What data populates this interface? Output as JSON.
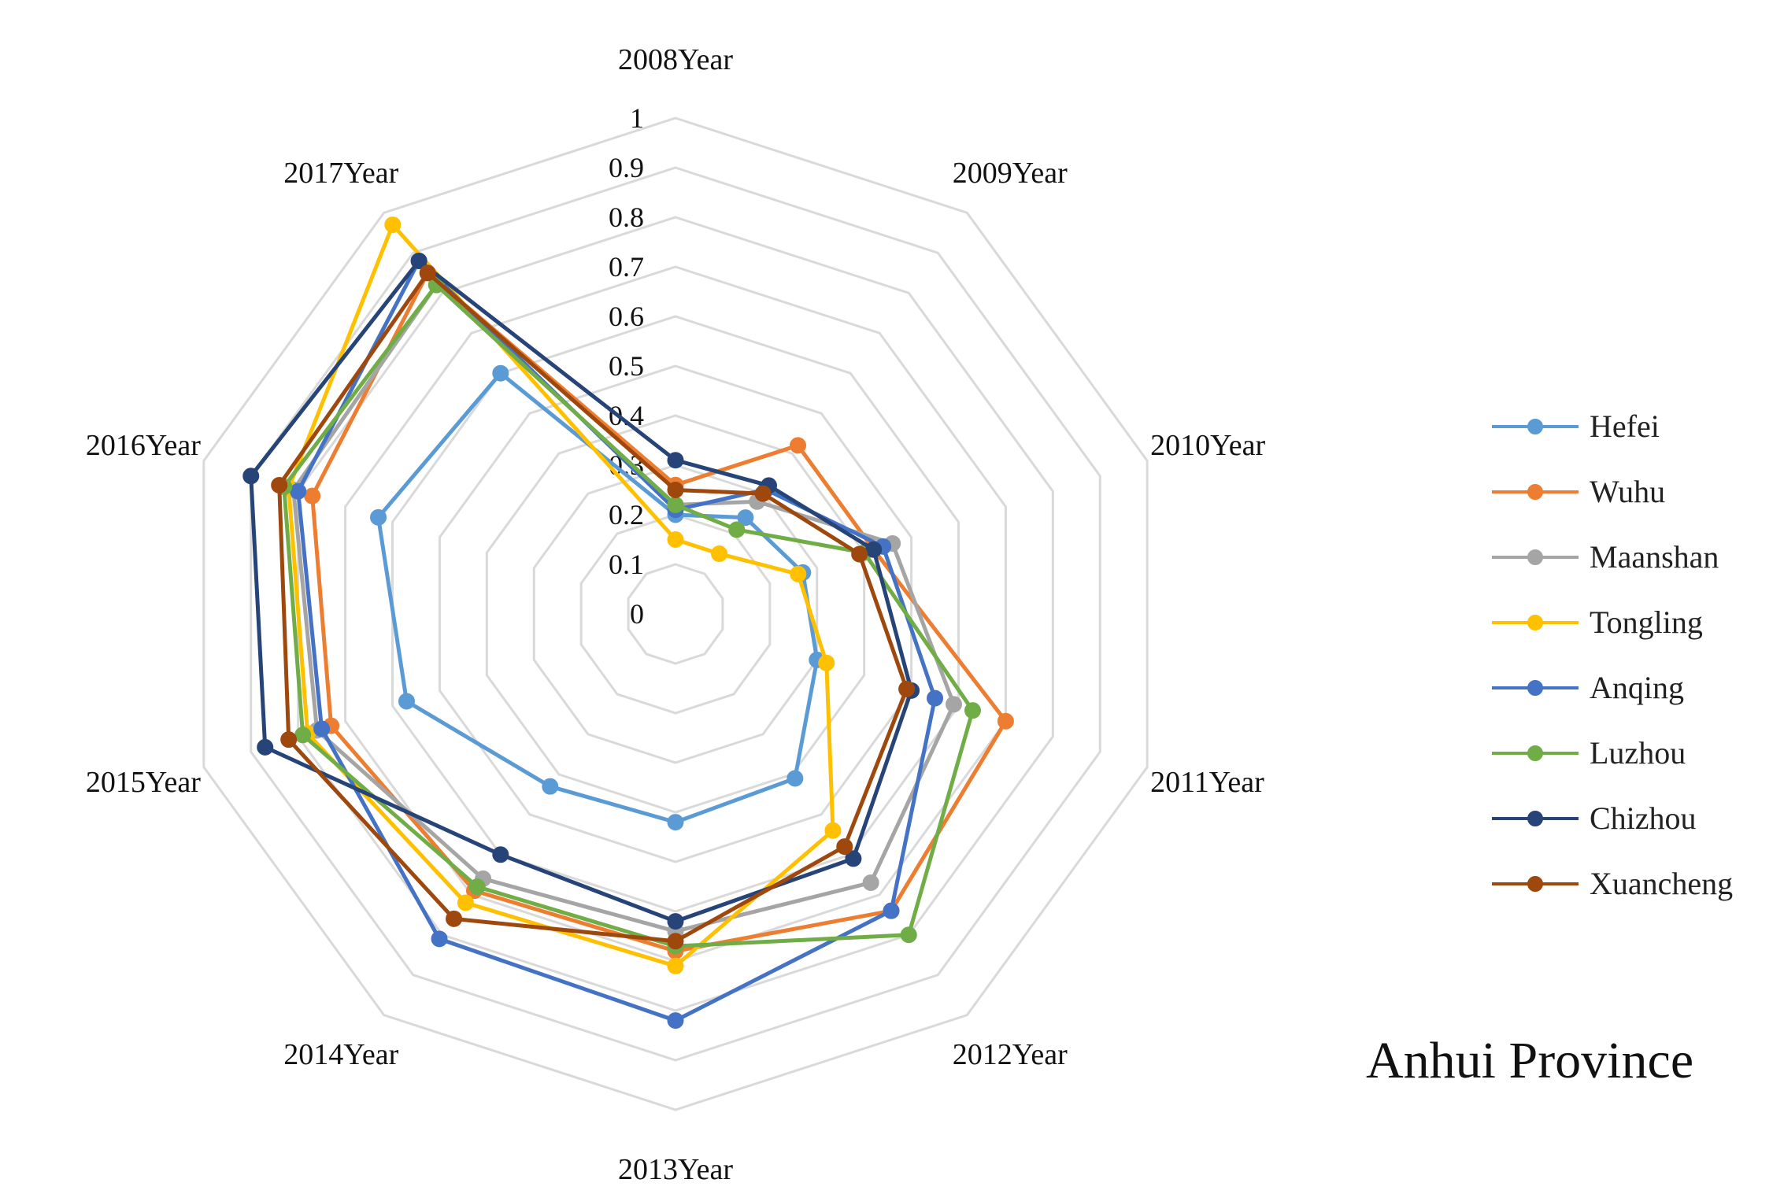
{
  "chart_data": {
    "type": "radar",
    "title": "Anhui Province",
    "categories": [
      "2008Year",
      "2009Year",
      "2010Year",
      "2011Year",
      "2012Year",
      "2013Year",
      "2014Year",
      "2015Year",
      "2016Year",
      "2017Year"
    ],
    "ticks": [
      "0",
      "0.1",
      "0.2",
      "0.3",
      "0.4",
      "0.5",
      "0.6",
      "0.7",
      "0.8",
      "0.9",
      "1"
    ],
    "rlim": [
      0,
      1
    ],
    "legend_position": "right",
    "series": [
      {
        "name": "Hefei",
        "color": "#5B9BD5",
        "values": [
          0.2,
          0.24,
          0.27,
          0.3,
          0.41,
          0.42,
          0.43,
          0.57,
          0.63,
          0.6
        ]
      },
      {
        "name": "Wuhu",
        "color": "#ED7D31",
        "values": [
          0.26,
          0.42,
          0.42,
          0.7,
          0.74,
          0.68,
          0.69,
          0.73,
          0.77,
          0.85
        ]
      },
      {
        "name": "Maanshan",
        "color": "#A5A5A5",
        "values": [
          0.22,
          0.28,
          0.46,
          0.59,
          0.67,
          0.64,
          0.66,
          0.76,
          0.81,
          0.82
        ]
      },
      {
        "name": "Tongling",
        "color": "#FFC000",
        "values": [
          0.15,
          0.15,
          0.26,
          0.32,
          0.54,
          0.71,
          0.72,
          0.78,
          0.82,
          0.97
        ]
      },
      {
        "name": "Anqing",
        "color": "#4472C4",
        "values": [
          0.21,
          0.31,
          0.44,
          0.55,
          0.74,
          0.82,
          0.81,
          0.75,
          0.8,
          0.88
        ]
      },
      {
        "name": "Luzhou",
        "color": "#70AD47",
        "values": [
          0.22,
          0.21,
          0.4,
          0.63,
          0.8,
          0.67,
          0.68,
          0.79,
          0.83,
          0.82
        ]
      },
      {
        "name": "Chizhou",
        "color": "#264478",
        "values": [
          0.31,
          0.32,
          0.42,
          0.5,
          0.61,
          0.62,
          0.6,
          0.87,
          0.9,
          0.88
        ]
      },
      {
        "name": "Xuancheng",
        "color": "#9E480E",
        "values": [
          0.25,
          0.3,
          0.39,
          0.49,
          0.58,
          0.66,
          0.76,
          0.82,
          0.84,
          0.85
        ]
      }
    ]
  },
  "province_label": "Anhui  Province"
}
